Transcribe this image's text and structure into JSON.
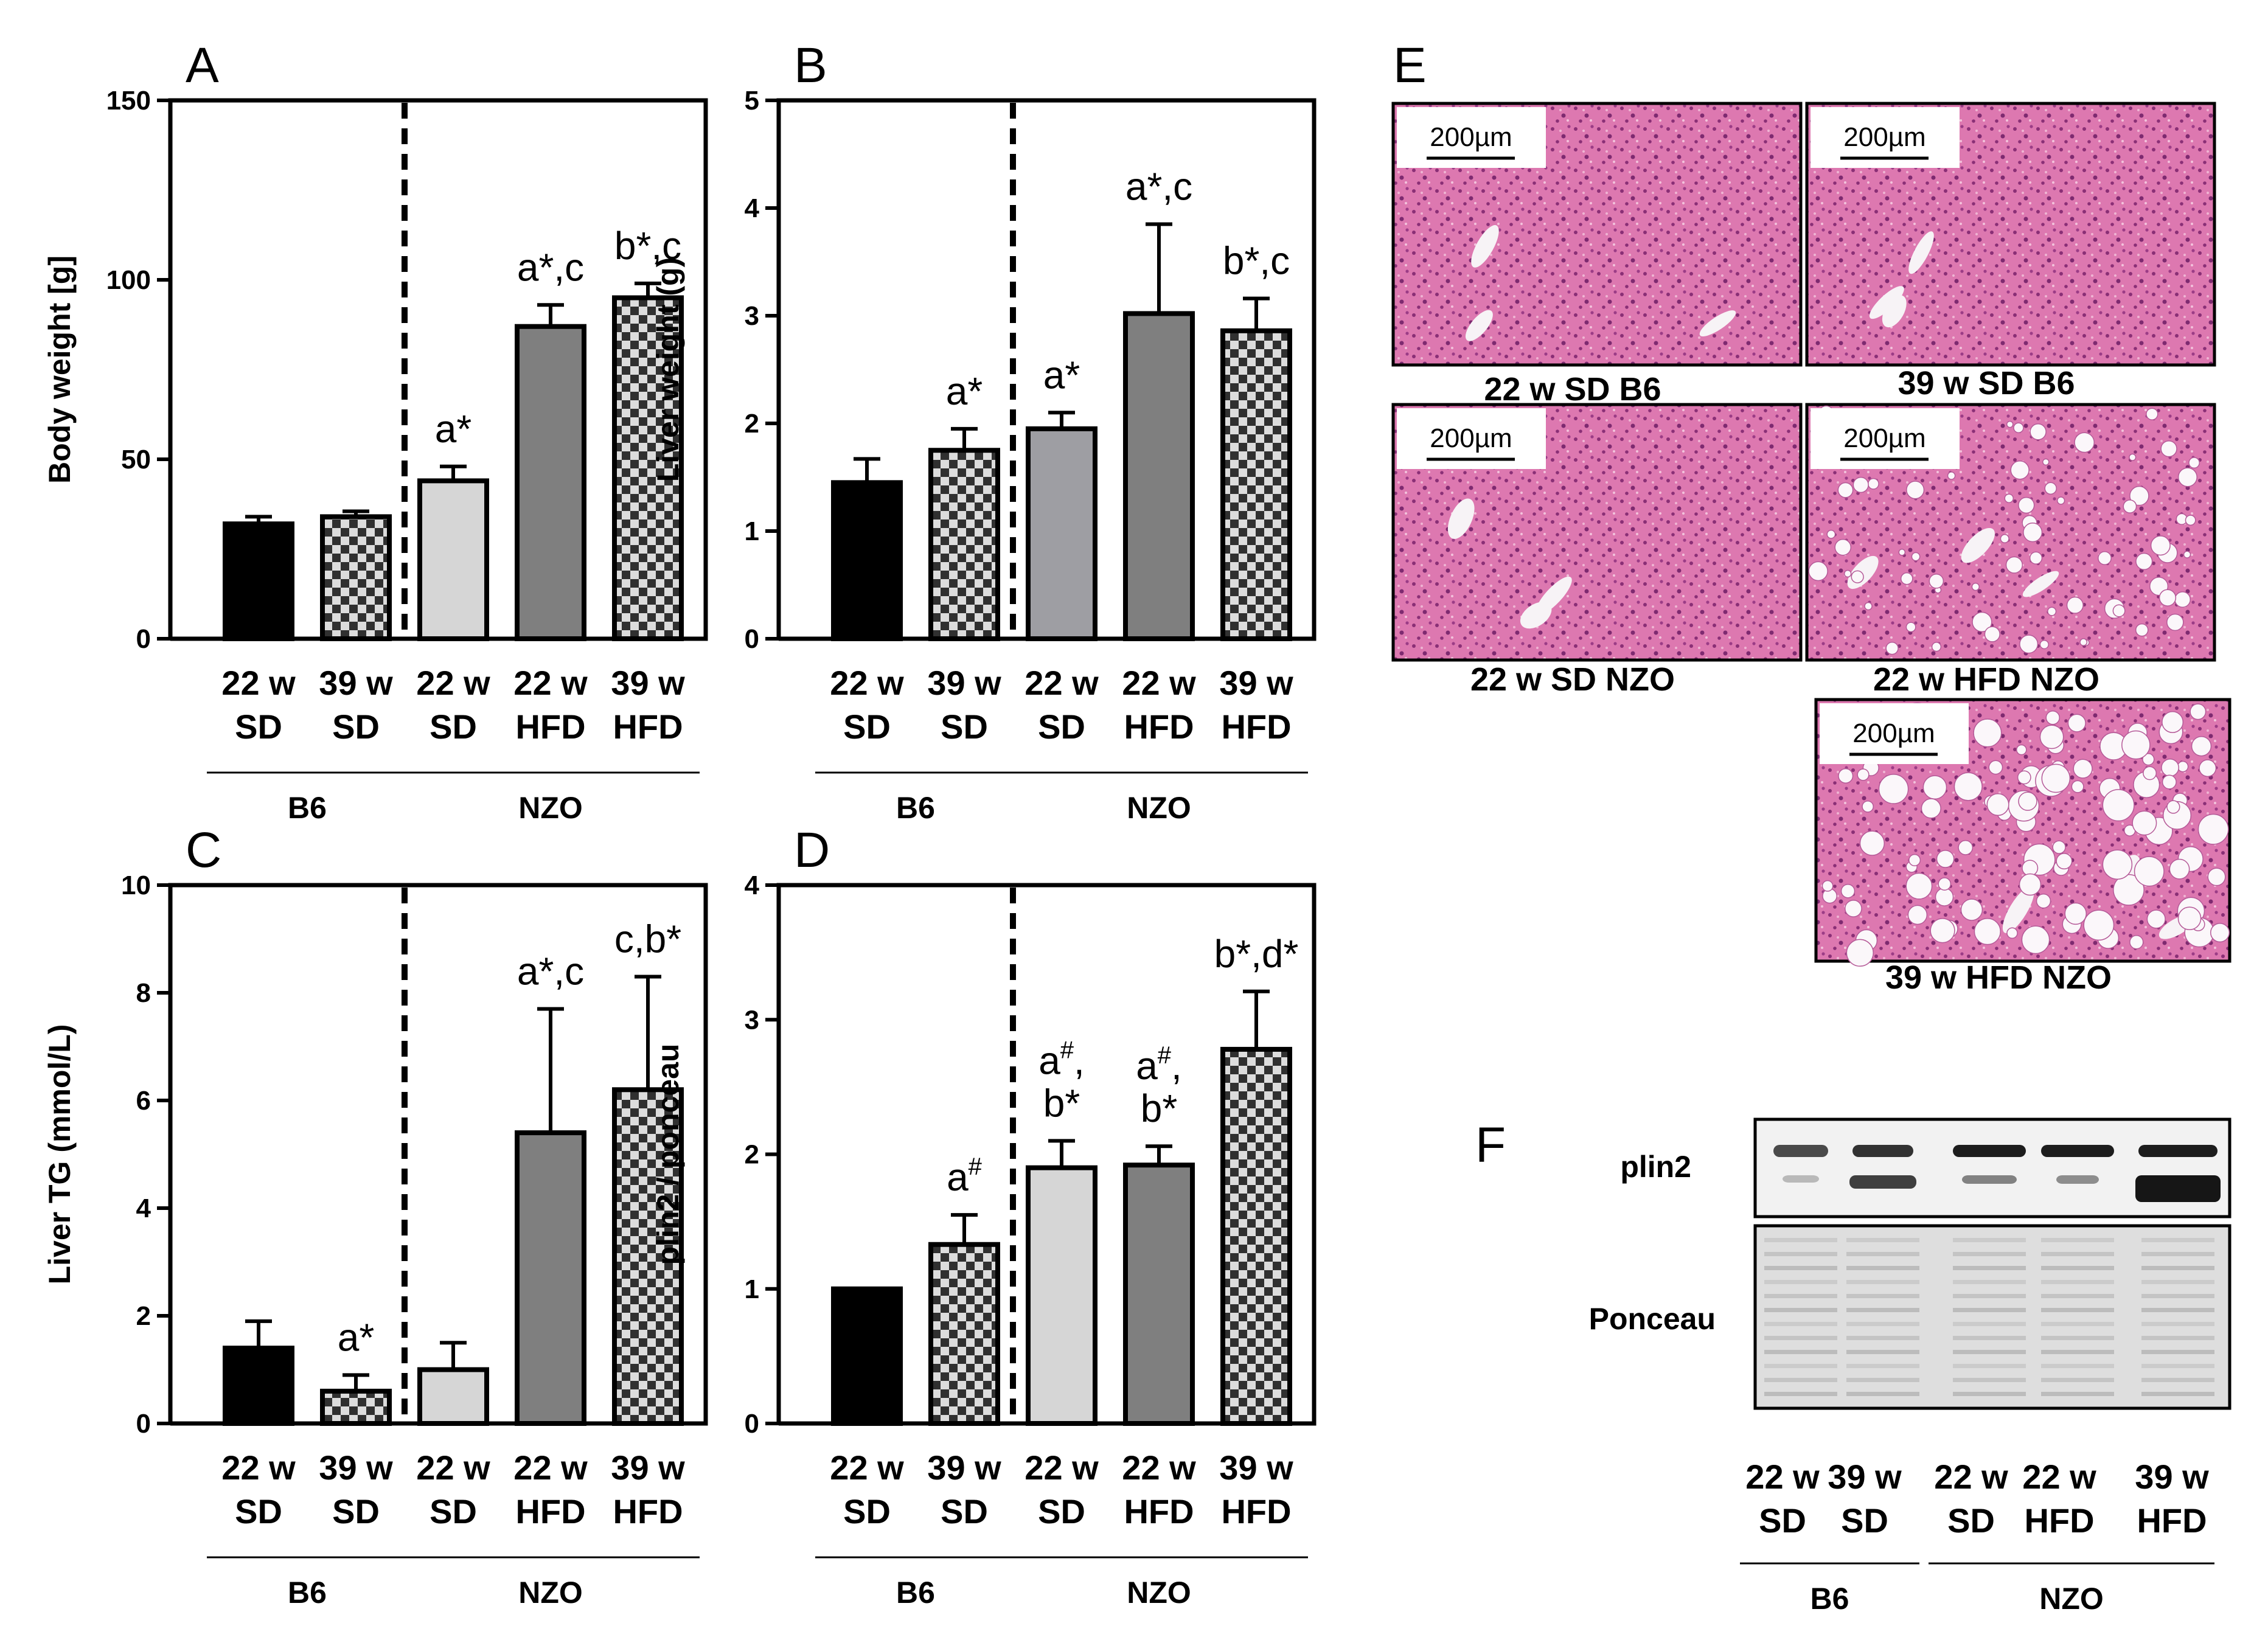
{
  "colors": {
    "black": "#000000",
    "light_gray": "#d6d6d6",
    "mid_gray": "#9e9ea3",
    "dark_gray": "#7f7f7f",
    "checker_light": "#dcdcdc",
    "checker_dark": "#303030",
    "he_pink": "#d86aa8",
    "he_dark": "#8a2f76"
  },
  "chart_data": [
    {
      "panel": "A",
      "type": "bar",
      "ylabel": "Body weight [g]",
      "ylim": [
        0,
        150
      ],
      "yticks": [
        0,
        50,
        100,
        150
      ],
      "categories": [
        "22 w SD",
        "39 w SD",
        "22 w SD",
        "22 w HFD",
        "39 w HFD"
      ],
      "category_lines": [
        [
          "22 w",
          "SD"
        ],
        [
          "39 w",
          "SD"
        ],
        [
          "22 w",
          "SD"
        ],
        [
          "22 w",
          "HFD"
        ],
        [
          "39 w",
          "HFD"
        ]
      ],
      "groups": [
        {
          "label": "B6",
          "from": 0,
          "to": 1
        },
        {
          "label": "NZO",
          "from": 2,
          "to": 4
        }
      ],
      "divider_after": 1,
      "fills": [
        "black",
        "checker",
        "light",
        "dark",
        "checker"
      ],
      "values": [
        32,
        34,
        44,
        87,
        95
      ],
      "errors": [
        2,
        1.5,
        4,
        6,
        4
      ],
      "annotations": [
        "",
        "",
        "a*",
        "a*,c",
        "b*,c"
      ]
    },
    {
      "panel": "B",
      "type": "bar",
      "ylabel": "Liver weight (g)",
      "ylim": [
        0,
        5
      ],
      "yticks": [
        0,
        1,
        2,
        3,
        4,
        5
      ],
      "categories": [
        "22 w SD",
        "39 w SD",
        "22 w SD",
        "22 w HFD",
        "39 w HFD"
      ],
      "category_lines": [
        [
          "22 w",
          "SD"
        ],
        [
          "39 w",
          "SD"
        ],
        [
          "22 w",
          "SD"
        ],
        [
          "22 w",
          "HFD"
        ],
        [
          "39 w",
          "HFD"
        ]
      ],
      "groups": [
        {
          "label": "B6",
          "from": 0,
          "to": 1
        },
        {
          "label": "NZO",
          "from": 2,
          "to": 4
        }
      ],
      "divider_after": 1,
      "fills": [
        "black",
        "checker",
        "mid",
        "dark",
        "checker"
      ],
      "values": [
        1.45,
        1.75,
        1.95,
        3.02,
        2.86
      ],
      "errors": [
        0.22,
        0.2,
        0.15,
        0.83,
        0.3
      ],
      "annotations": [
        "",
        "a*",
        "a*",
        "a*,c",
        "b*,c"
      ]
    },
    {
      "panel": "C",
      "type": "bar",
      "ylabel": "Liver TG (mmol/L)",
      "ylim": [
        0,
        10
      ],
      "yticks": [
        0,
        2,
        4,
        6,
        8,
        10
      ],
      "categories": [
        "22 w SD",
        "39 w SD",
        "22 w SD",
        "22 w HFD",
        "39 w HFD"
      ],
      "category_lines": [
        [
          "22 w",
          "SD"
        ],
        [
          "39 w",
          "SD"
        ],
        [
          "22 w",
          "SD"
        ],
        [
          "22 w",
          "HFD"
        ],
        [
          "39 w",
          "HFD"
        ]
      ],
      "groups": [
        {
          "label": "B6",
          "from": 0,
          "to": 1
        },
        {
          "label": "NZO",
          "from": 2,
          "to": 4
        }
      ],
      "divider_after": 1,
      "fills": [
        "black",
        "checker",
        "light",
        "dark",
        "checker"
      ],
      "values": [
        1.4,
        0.6,
        1.0,
        5.4,
        6.2
      ],
      "errors": [
        0.5,
        0.3,
        0.5,
        2.3,
        2.1
      ],
      "annotations": [
        "",
        "a*",
        "",
        "a*,c",
        "c,b*"
      ]
    },
    {
      "panel": "D",
      "type": "bar",
      "ylabel": "plin2 / ponceau",
      "ylim": [
        0,
        4
      ],
      "yticks": [
        0,
        1,
        2,
        3,
        4
      ],
      "categories": [
        "22 w SD",
        "39 w SD",
        "22 w SD",
        "22 w HFD",
        "39 w HFD"
      ],
      "category_lines": [
        [
          "22 w",
          "SD"
        ],
        [
          "39 w",
          "SD"
        ],
        [
          "22 w",
          "SD"
        ],
        [
          "22 w",
          "HFD"
        ],
        [
          "39 w",
          "HFD"
        ]
      ],
      "groups": [
        {
          "label": "B6",
          "from": 0,
          "to": 1
        },
        {
          "label": "NZO",
          "from": 2,
          "to": 4
        }
      ],
      "divider_after": 1,
      "fills": [
        "black",
        "checker",
        "light",
        "dark",
        "checker"
      ],
      "values": [
        1.0,
        1.33,
        1.9,
        1.92,
        2.78
      ],
      "errors": [
        0,
        0.22,
        0.2,
        0.14,
        0.43
      ],
      "annotations": [
        "",
        "a#",
        "a#,\nb*",
        "a#,\nb*",
        "b*,d*"
      ]
    }
  ],
  "panel_e": {
    "letter": "E",
    "scale_bar": "200µm",
    "images": [
      {
        "caption": "22 w SD B6",
        "fat": 0
      },
      {
        "caption": "39 w SD B6",
        "fat": 0
      },
      {
        "caption": "22 w SD NZO",
        "fat": 0
      },
      {
        "caption": "22 w HFD NZO",
        "fat": 1
      },
      {
        "caption": "39 w HFD NZO",
        "fat": 2
      }
    ]
  },
  "panel_f": {
    "letter": "F",
    "rows": [
      "plin2",
      "Ponceau"
    ],
    "lanes": [
      [
        "22 w",
        "SD"
      ],
      [
        "39 w",
        "SD"
      ],
      [
        "22 w",
        "SD"
      ],
      [
        "22 w",
        "HFD"
      ],
      [
        "39 w",
        "HFD"
      ]
    ],
    "groups": [
      {
        "label": "B6",
        "from": 0,
        "to": 1
      },
      {
        "label": "NZO",
        "from": 2,
        "to": 4
      }
    ]
  }
}
